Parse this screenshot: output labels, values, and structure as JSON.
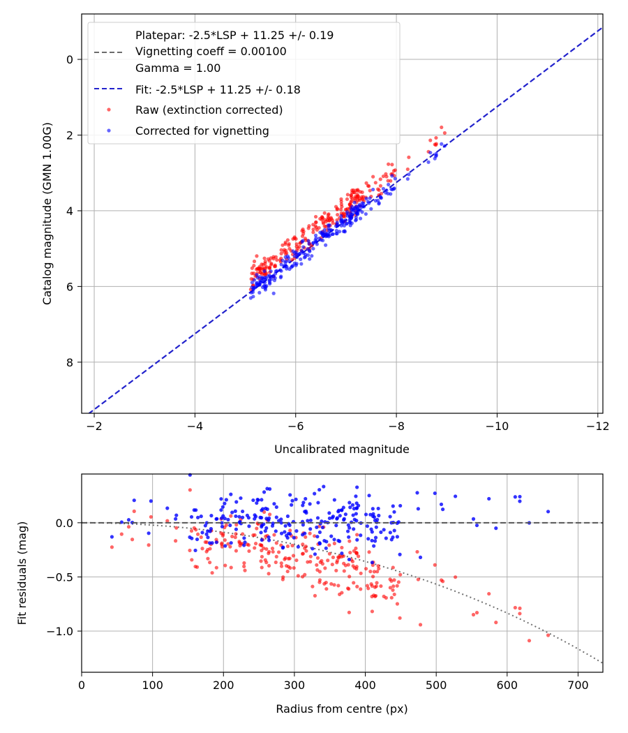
{
  "colors": {
    "raw": "#ff0000",
    "corrected": "#0000ff",
    "fit": "#2222cc",
    "platepar": "#6b6b6b",
    "vignetting_model": "#707070",
    "grid": "#b0b0b0"
  },
  "chart_data": [
    {
      "type": "scatter",
      "name": "top",
      "xlabel": "Uncalibrated magnitude",
      "ylabel": "Catalog magnitude (GMN 1.00G)",
      "xlim": [
        -1.75,
        -12.1
      ],
      "ylim": [
        9.35,
        -1.2
      ],
      "x_ticks": [
        -2,
        -4,
        -6,
        -8,
        -10,
        -12
      ],
      "x_tick_labels": [
        "−2",
        "−4",
        "−6",
        "−8",
        "−10",
        "−12"
      ],
      "y_ticks": [
        0,
        2,
        4,
        6,
        8
      ],
      "y_tick_labels": [
        "0",
        "2",
        "4",
        "6",
        "8"
      ],
      "grid": true,
      "legend_position": "top-left",
      "legend": {
        "platepar_lines": [
          "Platepar: -2.5*LSP + 11.25 +/- 0.19",
          "Vignetting coeff = 0.00100",
          "Gamma = 1.00"
        ],
        "fit_label": "Fit: -2.5*LSP + 11.25 +/- 0.18",
        "raw_label": "Raw (extinction corrected)",
        "corrected_label": "Corrected for vignetting"
      },
      "fit_line": {
        "slope": 1.0,
        "intercept": 11.25
      },
      "scatter": {
        "count": 260,
        "x_range": [
          -4.9,
          -9.0
        ],
        "raw_offset_mean": -0.3,
        "corrected_offset_mean": 0.0
      }
    },
    {
      "type": "scatter",
      "name": "bottom",
      "xlabel": "Radius from centre (px)",
      "ylabel": "Fit residuals (mag)",
      "xlim": [
        0,
        735
      ],
      "ylim": [
        -1.38,
        0.45
      ],
      "x_ticks": [
        0,
        100,
        200,
        300,
        400,
        500,
        600,
        700
      ],
      "x_tick_labels": [
        "0",
        "100",
        "200",
        "300",
        "400",
        "500",
        "600",
        "700"
      ],
      "y_ticks": [
        0.0,
        -0.5,
        -1.0
      ],
      "y_tick_labels": [
        "0.0",
        "−0.5",
        "−1.0"
      ],
      "grid": true,
      "zero_line": 0.0,
      "vignetting_model": {
        "coeff": 0.001,
        "x_range": [
          0,
          735
        ]
      },
      "scatter": {
        "count": 260,
        "radius_range": [
          40,
          660
        ]
      }
    }
  ]
}
